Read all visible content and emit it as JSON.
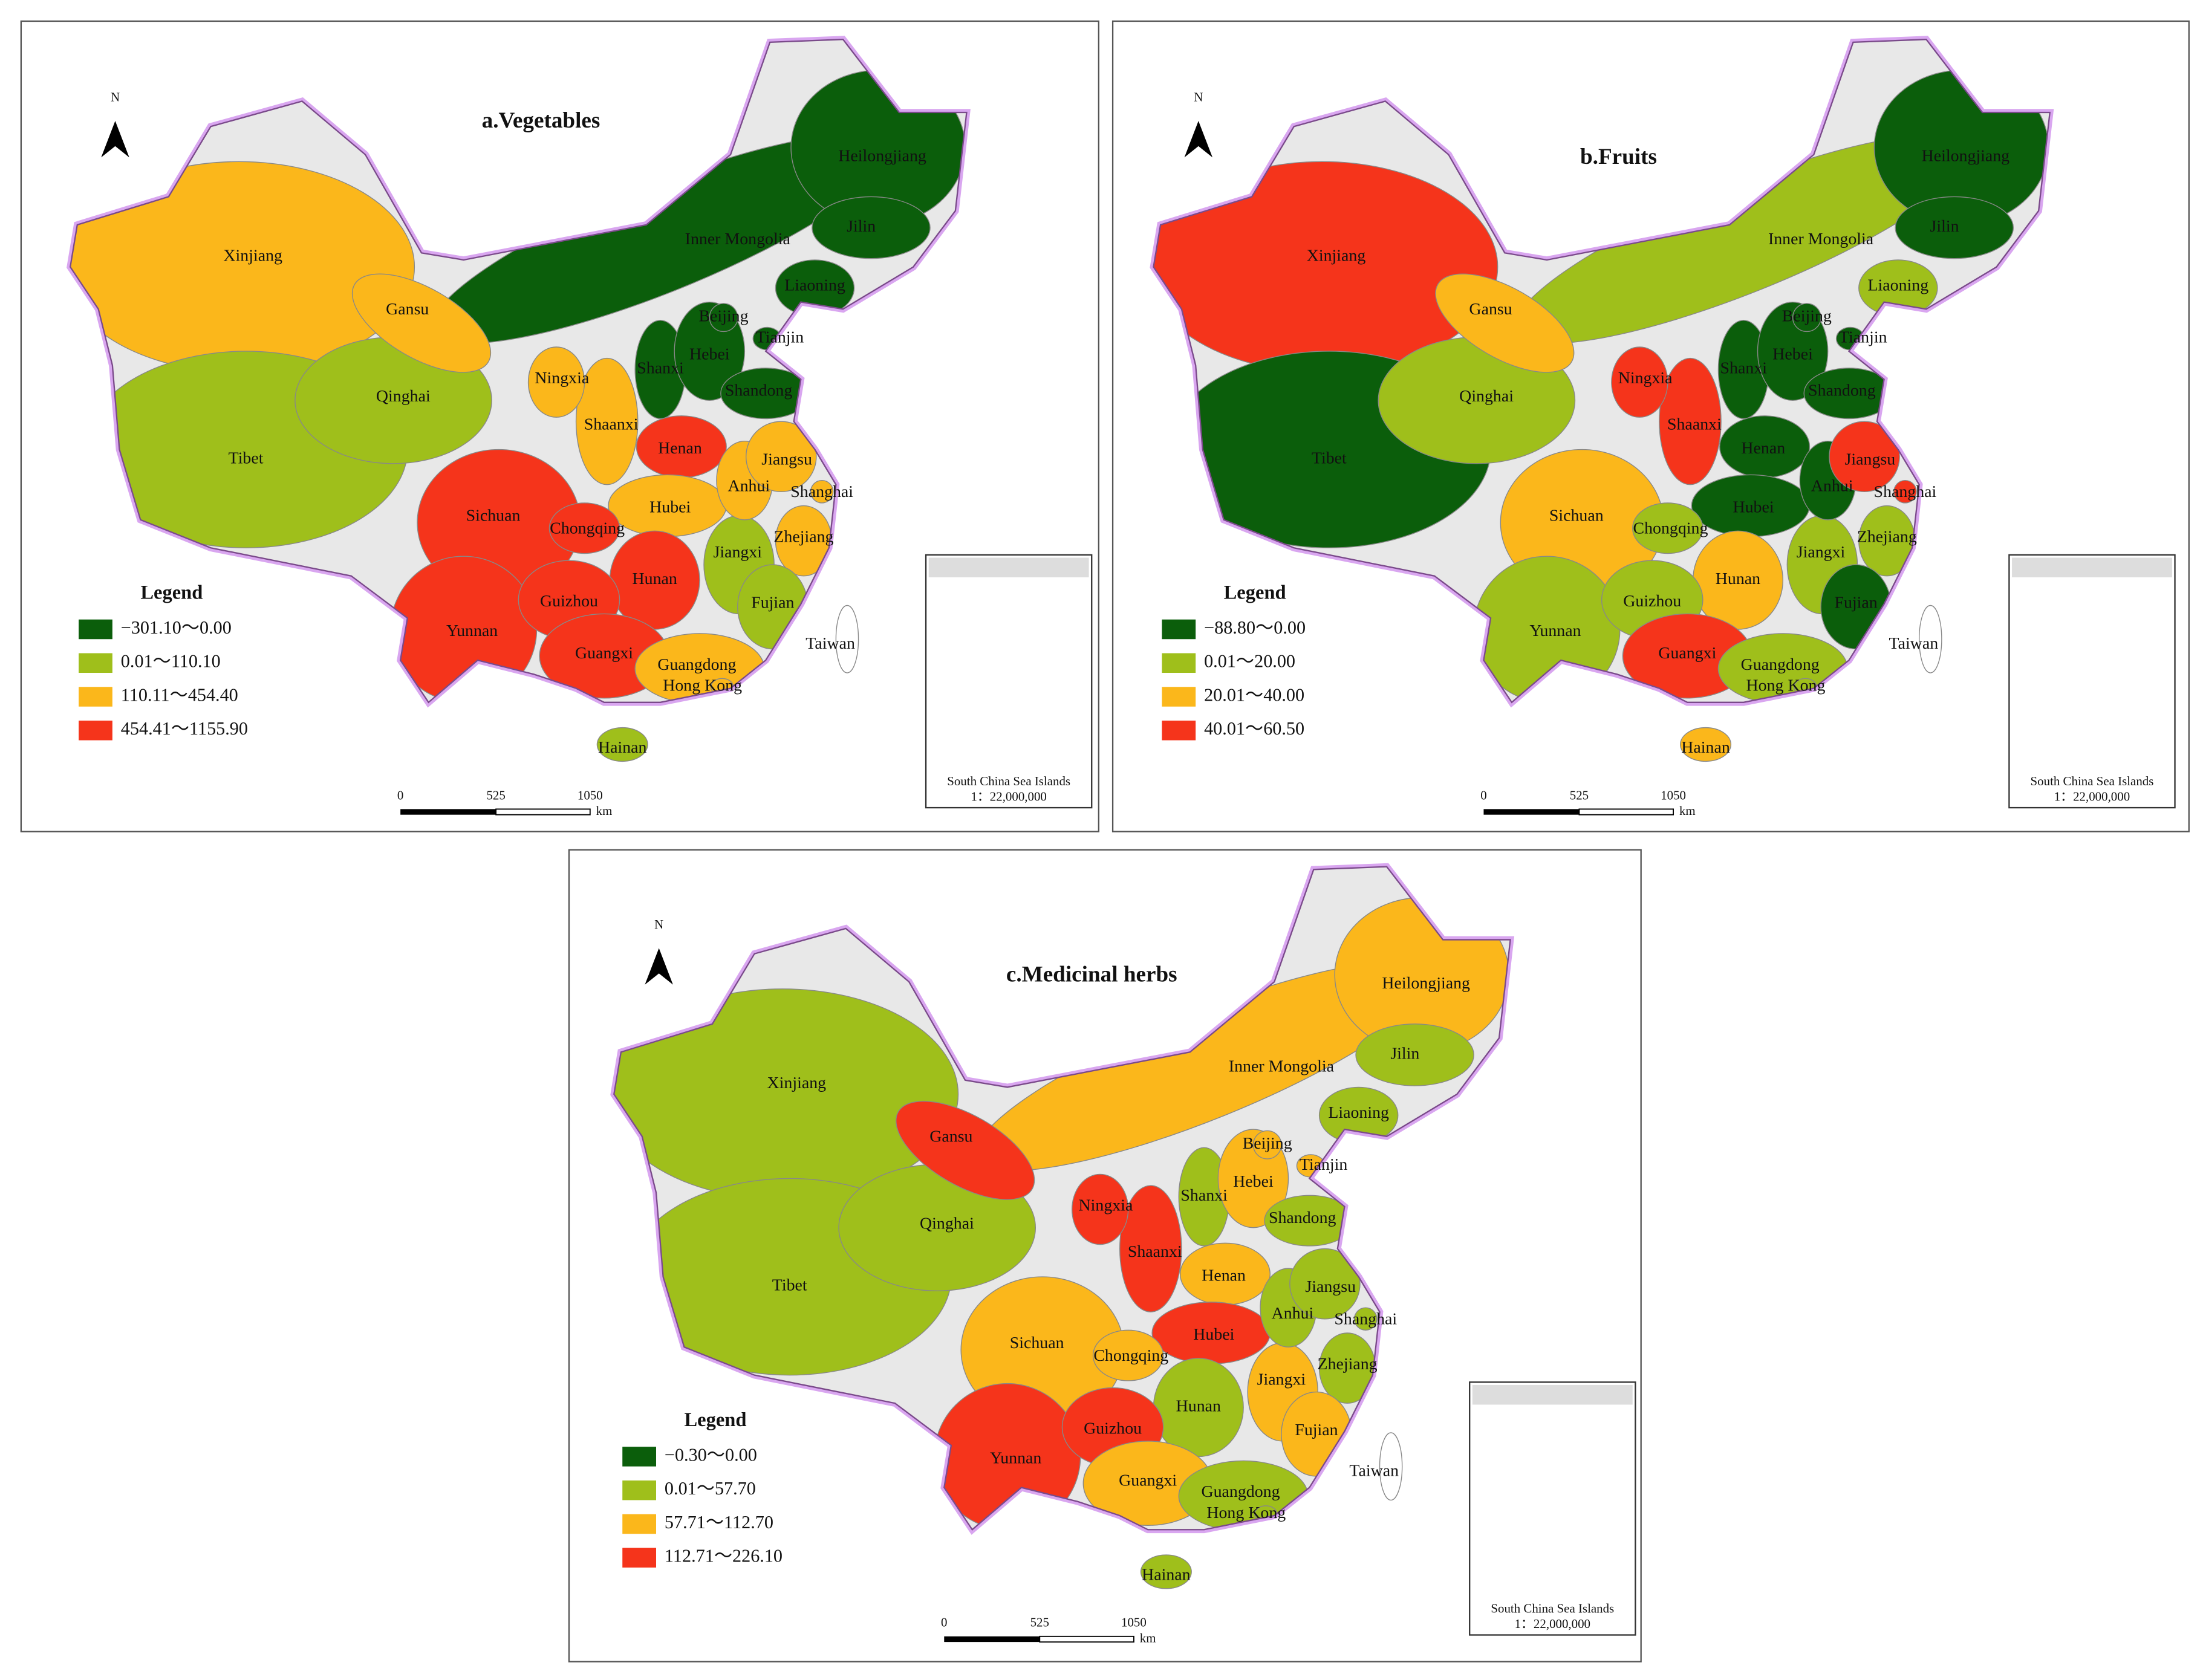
{
  "panels": [
    {
      "title": "a.Vegetables",
      "north": "N",
      "legend_title": "Legend",
      "legend": [
        {
          "label": "−301.10～0.00",
          "color": "#0b5e0b"
        },
        {
          "label": "0.01～110.10",
          "color": "#9fbf1b"
        },
        {
          "label": "110.11～454.40",
          "color": "#fbb71b"
        },
        {
          "label": "454.41～1155.90",
          "color": "#f5341b"
        }
      ],
      "scale": {
        "ticks": [
          0,
          525,
          1050
        ],
        "unit": "km"
      },
      "inset": [
        "South China Sea Islands",
        "1：22,000,000"
      ],
      "regions": [
        {
          "name": "Xinjiang",
          "color": "#fbb71b"
        },
        {
          "name": "Tibet",
          "color": "#9fbf1b"
        },
        {
          "name": "Qinghai",
          "color": "#9fbf1b"
        },
        {
          "name": "Inner Mongolia",
          "color": "#0b5e0b"
        },
        {
          "name": "Gansu",
          "color": "#fbb71b"
        },
        {
          "name": "Sichuan",
          "color": "#f5341b"
        },
        {
          "name": "Yunnan",
          "color": "#f5341b"
        },
        {
          "name": "Heilongjiang",
          "color": "#0b5e0b"
        },
        {
          "name": "Jilin",
          "color": "#0b5e0b"
        },
        {
          "name": "Liaoning",
          "color": "#0b5e0b"
        },
        {
          "name": "Shaanxi",
          "color": "#fbb71b"
        },
        {
          "name": "Ningxia",
          "color": "#fbb71b"
        },
        {
          "name": "Shanxi",
          "color": "#0b5e0b"
        },
        {
          "name": "Hebei",
          "color": "#0b5e0b"
        },
        {
          "name": "Beijing",
          "color": "#0b5e0b"
        },
        {
          "name": "Tianjin",
          "color": "#0b5e0b"
        },
        {
          "name": "Shandong",
          "color": "#0b5e0b"
        },
        {
          "name": "Henan",
          "color": "#f5341b"
        },
        {
          "name": "Hubei",
          "color": "#fbb71b"
        },
        {
          "name": "Hunan",
          "color": "#f5341b"
        },
        {
          "name": "Guizhou",
          "color": "#f5341b"
        },
        {
          "name": "Guangxi",
          "color": "#f5341b"
        },
        {
          "name": "Chongqing",
          "color": "#f5341b"
        },
        {
          "name": "Jiangxi",
          "color": "#9fbf1b"
        },
        {
          "name": "Anhui",
          "color": "#fbb71b"
        },
        {
          "name": "Jiangsu",
          "color": "#fbb71b"
        },
        {
          "name": "Zhejiang",
          "color": "#fbb71b"
        },
        {
          "name": "Fujian",
          "color": "#9fbf1b"
        },
        {
          "name": "Guangdong",
          "color": "#fbb71b"
        },
        {
          "name": "Hong Kong",
          "color": "#fbb71b"
        },
        {
          "name": "Shanghai",
          "color": "#fbb71b"
        },
        {
          "name": "Taiwan",
          "color": "#ffffff"
        },
        {
          "name": "Hainan",
          "color": "#9fbf1b"
        }
      ]
    },
    {
      "title": "b.Fruits",
      "north": "N",
      "legend_title": "Legend",
      "legend": [
        {
          "label": "−88.80～0.00",
          "color": "#0b5e0b"
        },
        {
          "label": "0.01～20.00",
          "color": "#9fbf1b"
        },
        {
          "label": "20.01～40.00",
          "color": "#fbb71b"
        },
        {
          "label": "40.01～60.50",
          "color": "#f5341b"
        }
      ],
      "scale": {
        "ticks": [
          0,
          525,
          1050
        ],
        "unit": "km"
      },
      "inset": [
        "South China Sea Islands",
        "1：22,000,000"
      ],
      "regions": [
        {
          "name": "Xinjiang",
          "color": "#f5341b"
        },
        {
          "name": "Tibet",
          "color": "#0b5e0b"
        },
        {
          "name": "Qinghai",
          "color": "#9fbf1b"
        },
        {
          "name": "Inner Mongolia",
          "color": "#9fbf1b"
        },
        {
          "name": "Gansu",
          "color": "#fbb71b"
        },
        {
          "name": "Sichuan",
          "color": "#fbb71b"
        },
        {
          "name": "Yunnan",
          "color": "#9fbf1b"
        },
        {
          "name": "Heilongjiang",
          "color": "#0b5e0b"
        },
        {
          "name": "Jilin",
          "color": "#0b5e0b"
        },
        {
          "name": "Liaoning",
          "color": "#9fbf1b"
        },
        {
          "name": "Shaanxi",
          "color": "#f5341b"
        },
        {
          "name": "Ningxia",
          "color": "#f5341b"
        },
        {
          "name": "Shanxi",
          "color": "#0b5e0b"
        },
        {
          "name": "Hebei",
          "color": "#0b5e0b"
        },
        {
          "name": "Beijing",
          "color": "#0b5e0b"
        },
        {
          "name": "Tianjin",
          "color": "#0b5e0b"
        },
        {
          "name": "Shandong",
          "color": "#0b5e0b"
        },
        {
          "name": "Henan",
          "color": "#0b5e0b"
        },
        {
          "name": "Hubei",
          "color": "#0b5e0b"
        },
        {
          "name": "Hunan",
          "color": "#fbb71b"
        },
        {
          "name": "Guizhou",
          "color": "#9fbf1b"
        },
        {
          "name": "Guangxi",
          "color": "#f5341b"
        },
        {
          "name": "Chongqing",
          "color": "#9fbf1b"
        },
        {
          "name": "Jiangxi",
          "color": "#9fbf1b"
        },
        {
          "name": "Anhui",
          "color": "#0b5e0b"
        },
        {
          "name": "Jiangsu",
          "color": "#f5341b"
        },
        {
          "name": "Zhejiang",
          "color": "#9fbf1b"
        },
        {
          "name": "Fujian",
          "color": "#0b5e0b"
        },
        {
          "name": "Guangdong",
          "color": "#9fbf1b"
        },
        {
          "name": "Hong Kong",
          "color": "#9fbf1b"
        },
        {
          "name": "Shanghai",
          "color": "#f5341b"
        },
        {
          "name": "Taiwan",
          "color": "#ffffff"
        },
        {
          "name": "Hainan",
          "color": "#fbb71b"
        }
      ]
    },
    {
      "title": "c.Medicinal herbs",
      "north": "N",
      "legend_title": "Legend",
      "legend": [
        {
          "label": "−0.30～0.00",
          "color": "#0b5e0b"
        },
        {
          "label": "0.01～57.70",
          "color": "#9fbf1b"
        },
        {
          "label": "57.71～112.70",
          "color": "#fbb71b"
        },
        {
          "label": "112.71～226.10",
          "color": "#f5341b"
        }
      ],
      "scale": {
        "ticks": [
          0,
          525,
          1050
        ],
        "unit": "km"
      },
      "inset": [
        "South China Sea Islands",
        "1：22,000,000"
      ],
      "regions": [
        {
          "name": "Xinjiang",
          "color": "#9fbf1b"
        },
        {
          "name": "Tibet",
          "color": "#9fbf1b"
        },
        {
          "name": "Qinghai",
          "color": "#9fbf1b"
        },
        {
          "name": "Inner Mongolia",
          "color": "#fbb71b"
        },
        {
          "name": "Gansu",
          "color": "#f5341b"
        },
        {
          "name": "Sichuan",
          "color": "#fbb71b"
        },
        {
          "name": "Yunnan",
          "color": "#f5341b"
        },
        {
          "name": "Heilongjiang",
          "color": "#fbb71b"
        },
        {
          "name": "Jilin",
          "color": "#9fbf1b"
        },
        {
          "name": "Liaoning",
          "color": "#9fbf1b"
        },
        {
          "name": "Shaanxi",
          "color": "#f5341b"
        },
        {
          "name": "Ningxia",
          "color": "#f5341b"
        },
        {
          "name": "Shanxi",
          "color": "#9fbf1b"
        },
        {
          "name": "Hebei",
          "color": "#fbb71b"
        },
        {
          "name": "Beijing",
          "color": "#fbb71b"
        },
        {
          "name": "Tianjin",
          "color": "#fbb71b"
        },
        {
          "name": "Shandong",
          "color": "#9fbf1b"
        },
        {
          "name": "Henan",
          "color": "#fbb71b"
        },
        {
          "name": "Hubei",
          "color": "#f5341b"
        },
        {
          "name": "Hunan",
          "color": "#9fbf1b"
        },
        {
          "name": "Guizhou",
          "color": "#f5341b"
        },
        {
          "name": "Guangxi",
          "color": "#fbb71b"
        },
        {
          "name": "Chongqing",
          "color": "#fbb71b"
        },
        {
          "name": "Jiangxi",
          "color": "#fbb71b"
        },
        {
          "name": "Anhui",
          "color": "#9fbf1b"
        },
        {
          "name": "Jiangsu",
          "color": "#9fbf1b"
        },
        {
          "name": "Zhejiang",
          "color": "#9fbf1b"
        },
        {
          "name": "Fujian",
          "color": "#fbb71b"
        },
        {
          "name": "Guangdong",
          "color": "#9fbf1b"
        },
        {
          "name": "Hong Kong",
          "color": "#9fbf1b"
        },
        {
          "name": "Shanghai",
          "color": "#9fbf1b"
        },
        {
          "name": "Taiwan",
          "color": "#ffffff"
        },
        {
          "name": "Hainan",
          "color": "#9fbf1b"
        }
      ]
    }
  ]
}
